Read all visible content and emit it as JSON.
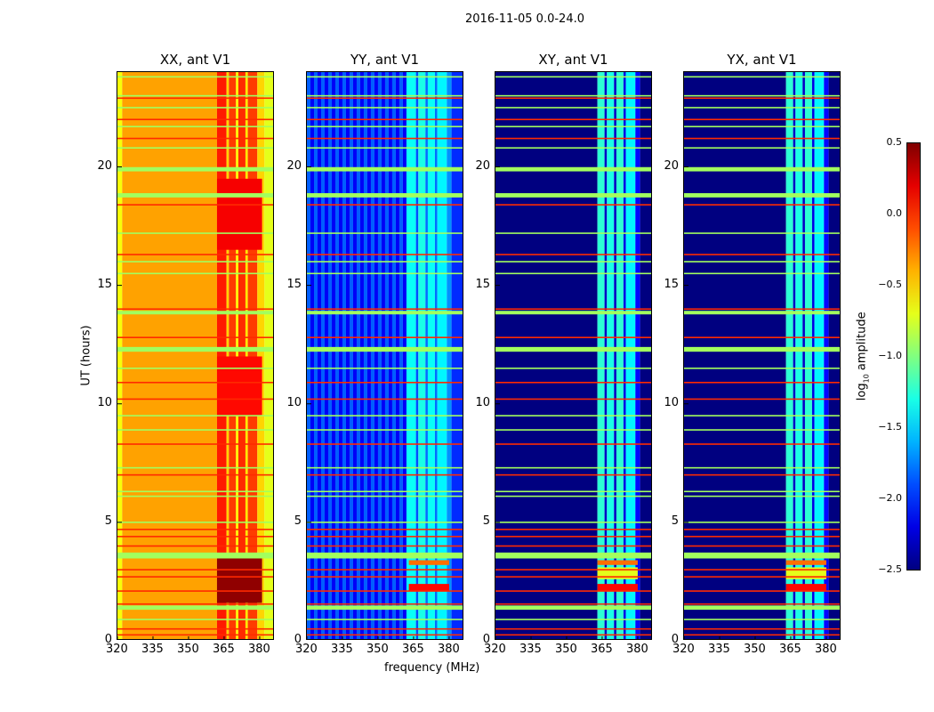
{
  "chart_data": {
    "type": "heatmap",
    "title": "2016-11-05 0.0-24.0",
    "xlabel": "frequency (MHz)",
    "ylabel": "UT (hours)",
    "xlim": [
      320,
      386.4
    ],
    "ylim": [
      0,
      24
    ],
    "xticks": [
      320,
      335,
      350,
      365,
      380
    ],
    "yticks": [
      0,
      5,
      10,
      15,
      20
    ],
    "colorbar": {
      "label_main": "log",
      "label_sub": "10",
      "label_rest": " amplitude",
      "range": [
        -2.5,
        0.5
      ],
      "ticks": [
        "0.5",
        "0.0",
        "−0.5",
        "−1.0",
        "−1.5",
        "−2.0",
        "−2.5"
      ],
      "tick_values": [
        0.5,
        0.0,
        -0.5,
        -1.0,
        -1.5,
        -2.0,
        -2.5
      ],
      "colormap": "jet"
    },
    "panels": [
      {
        "title": "XX, ant V1",
        "bands": [
          [
            320,
            322,
            -0.65
          ],
          [
            322,
            362,
            -0.35
          ],
          [
            362,
            366,
            0.05
          ],
          [
            366,
            367,
            -0.5
          ],
          [
            367,
            370,
            -0.05
          ],
          [
            370,
            371,
            -0.6
          ],
          [
            371,
            374,
            0.0
          ],
          [
            374,
            375,
            -0.55
          ],
          [
            375,
            379,
            -0.05
          ],
          [
            379,
            382,
            -0.5
          ],
          [
            382,
            386.4,
            -0.7
          ]
        ],
        "stripes": null,
        "blocks": [
          [
            362,
            381,
            1.6,
            3.5,
            0.45
          ],
          [
            362,
            381,
            9.5,
            12.0,
            0.1
          ],
          [
            362,
            381,
            16.5,
            19.5,
            0.15
          ]
        ]
      },
      {
        "title": "YY, ant V1",
        "bands": [
          [
            362,
            366,
            -1.35
          ],
          [
            366,
            367,
            -1.9
          ],
          [
            367,
            370,
            -1.3
          ],
          [
            370,
            371,
            -1.8
          ],
          [
            371,
            374,
            -1.35
          ],
          [
            374,
            375,
            -1.8
          ],
          [
            375,
            379,
            -1.4
          ],
          [
            379,
            381,
            -1.7
          ],
          [
            381,
            386.4,
            -2.0
          ]
        ],
        "stripes": {
          "from": 320,
          "to": 362,
          "period": 3,
          "values": [
            -1.85,
            -2.15
          ]
        },
        "blocks": [
          [
            363,
            380,
            2.1,
            2.4,
            0.1
          ],
          [
            363,
            380,
            3.2,
            3.4,
            -0.2
          ]
        ]
      },
      {
        "title": "XY, ant V1",
        "bands": [
          [
            320,
            363,
            -2.5
          ],
          [
            363,
            366,
            -1.25
          ],
          [
            366,
            367,
            -2.3
          ],
          [
            367,
            370,
            -1.3
          ],
          [
            370,
            371,
            -2.3
          ],
          [
            371,
            374,
            -1.25
          ],
          [
            374,
            375,
            -2.2
          ],
          [
            375,
            379,
            -1.4
          ],
          [
            379,
            381,
            -2.1
          ],
          [
            381,
            386.4,
            -2.5
          ]
        ],
        "stripes": null,
        "blocks": [
          [
            363,
            380,
            2.1,
            2.4,
            0.1
          ],
          [
            363,
            380,
            3.2,
            3.4,
            -0.2
          ],
          [
            363,
            380,
            2.6,
            3.1,
            -0.7
          ]
        ]
      },
      {
        "title": "YX, ant V1",
        "bands": [
          [
            320,
            363,
            -2.5
          ],
          [
            363,
            366,
            -1.25
          ],
          [
            366,
            367,
            -2.3
          ],
          [
            367,
            370,
            -1.3
          ],
          [
            370,
            371,
            -2.3
          ],
          [
            371,
            374,
            -1.25
          ],
          [
            374,
            375,
            -2.2
          ],
          [
            375,
            379,
            -1.4
          ],
          [
            379,
            381,
            -2.1
          ],
          [
            381,
            386.4,
            -2.5
          ]
        ],
        "stripes": null,
        "blocks": [
          [
            363,
            380,
            2.1,
            2.4,
            0.1
          ],
          [
            363,
            380,
            3.2,
            3.4,
            -0.2
          ],
          [
            363,
            380,
            2.6,
            3.1,
            -0.7
          ]
        ]
      }
    ],
    "flagged_rows": [
      {
        "t": 3.6,
        "w": 0.25,
        "v": -0.9
      },
      {
        "t": 1.4,
        "w": 0.18,
        "v": -0.9
      },
      {
        "t": 12.3,
        "w": 0.2,
        "v": -0.9
      },
      {
        "t": 13.85,
        "w": 0.15,
        "v": -0.9
      },
      {
        "t": 18.8,
        "w": 0.18,
        "v": -0.9
      },
      {
        "t": 19.9,
        "w": 0.18,
        "v": -0.9
      },
      {
        "t": 0.25,
        "w": 0.06,
        "v": 0.0
      },
      {
        "t": 0.5,
        "w": 0.06,
        "v": 0.0
      },
      {
        "t": 1.55,
        "w": 0.06,
        "v": 0.0
      },
      {
        "t": 2.1,
        "w": 0.06,
        "v": 0.0
      },
      {
        "t": 2.7,
        "w": 0.06,
        "v": 0.0
      },
      {
        "t": 3.0,
        "w": 0.06,
        "v": 0.0
      },
      {
        "t": 4.0,
        "w": 0.06,
        "v": 0.0
      },
      {
        "t": 4.4,
        "w": 0.06,
        "v": 0.0
      },
      {
        "t": 4.7,
        "w": 0.06,
        "v": 0.0
      },
      {
        "t": 7.0,
        "w": 0.06,
        "v": 0.0
      },
      {
        "t": 8.3,
        "w": 0.06,
        "v": 0.0
      },
      {
        "t": 10.2,
        "w": 0.06,
        "v": 0.0
      },
      {
        "t": 10.9,
        "w": 0.06,
        "v": 0.0
      },
      {
        "t": 12.8,
        "w": 0.06,
        "v": 0.0
      },
      {
        "t": 14.0,
        "w": 0.06,
        "v": 0.0
      },
      {
        "t": 16.3,
        "w": 0.06,
        "v": 0.0
      },
      {
        "t": 18.4,
        "w": 0.06,
        "v": 0.0
      },
      {
        "t": 21.2,
        "w": 0.06,
        "v": 0.0
      },
      {
        "t": 22.0,
        "w": 0.06,
        "v": 0.0
      },
      {
        "t": 22.9,
        "w": 0.06,
        "v": 0.0
      },
      {
        "t": 0.9,
        "w": 0.06,
        "v": -0.9
      },
      {
        "t": 5.0,
        "w": 0.06,
        "v": -0.9
      },
      {
        "t": 6.1,
        "w": 0.06,
        "v": -0.9
      },
      {
        "t": 6.3,
        "w": 0.06,
        "v": -0.9
      },
      {
        "t": 7.3,
        "w": 0.06,
        "v": -0.9
      },
      {
        "t": 8.9,
        "w": 0.06,
        "v": -0.9
      },
      {
        "t": 9.5,
        "w": 0.06,
        "v": -0.9
      },
      {
        "t": 11.5,
        "w": 0.06,
        "v": -0.9
      },
      {
        "t": 15.5,
        "w": 0.06,
        "v": -0.9
      },
      {
        "t": 16.0,
        "w": 0.06,
        "v": -0.9
      },
      {
        "t": 17.2,
        "w": 0.06,
        "v": -0.9
      },
      {
        "t": 20.8,
        "w": 0.06,
        "v": -0.9
      },
      {
        "t": 21.7,
        "w": 0.06,
        "v": -0.9
      },
      {
        "t": 22.5,
        "w": 0.06,
        "v": -0.9
      },
      {
        "t": 23.0,
        "w": 0.06,
        "v": -0.9
      },
      {
        "t": 23.8,
        "w": 0.06,
        "v": -0.9
      }
    ]
  }
}
